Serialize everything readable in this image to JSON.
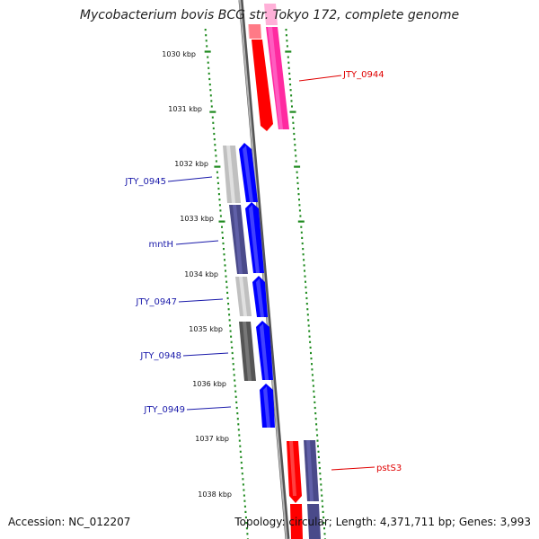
{
  "title": "Mycobacterium bovis BCG str. Tokyo 172, complete genome",
  "footer": {
    "accession": "Accession: NC_012207",
    "topology": "Topology: circular; Length: 4,371,711 bp; Genes: 3,993"
  },
  "colors": {
    "backbone": "#8a8a8a",
    "tick": "#1e8a1e",
    "forward_label": "#1a1aaa",
    "reverse_label": "#e00000",
    "forward_cds": "#0000ff",
    "reverse_cds": "#ff0000",
    "reverse_cds_alt": "#ff2aa0"
  },
  "axis_ticks": [
    "1030 kbp",
    "1031 kbp",
    "1032 kbp",
    "1033 kbp",
    "1034 kbp",
    "1035 kbp",
    "1036 kbp",
    "1037 kbp",
    "1038 kbp"
  ],
  "gene_labels": [
    {
      "text": "JTY_0944",
      "strand": "reverse"
    },
    {
      "text": "JTY_0945",
      "strand": "forward"
    },
    {
      "text": "mntH",
      "strand": "forward"
    },
    {
      "text": "JTY_0947",
      "strand": "forward"
    },
    {
      "text": "JTY_0948",
      "strand": "forward"
    },
    {
      "text": "JTY_0949",
      "strand": "forward"
    },
    {
      "text": "pstS3",
      "strand": "reverse"
    }
  ]
}
